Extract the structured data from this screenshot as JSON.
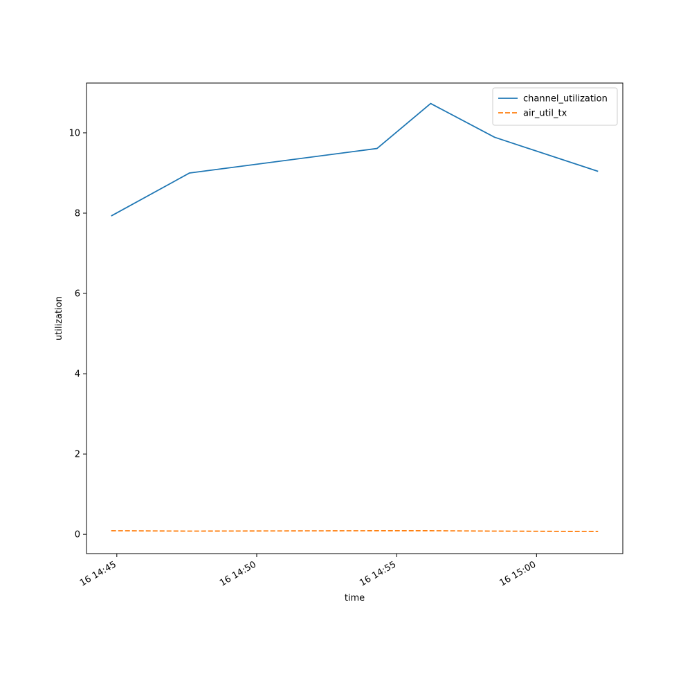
{
  "chart_data": {
    "type": "line",
    "xlabel": "time",
    "ylabel": "utilization",
    "x_axis_kind": "datetime",
    "xlim": [
      "16 14:43:55",
      "16 15:03:05"
    ],
    "ylim": [
      -0.48,
      11.24
    ],
    "x_ticks": [
      {
        "value": "16 14:45:00",
        "label": "16 14:45"
      },
      {
        "value": "16 14:50:00",
        "label": "16 14:50"
      },
      {
        "value": "16 14:55:00",
        "label": "16 14:55"
      },
      {
        "value": "16 15:00:00",
        "label": "16 15:00"
      }
    ],
    "y_ticks": [
      0,
      2,
      4,
      6,
      8,
      10
    ],
    "grid": false,
    "legend_position": "top-right",
    "series": [
      {
        "name": "channel_utilization",
        "color": "#1f77b4",
        "style": "solid",
        "points": [
          {
            "x": "16 14:44:48",
            "y": 7.93
          },
          {
            "x": "16 14:47:36",
            "y": 9.0
          },
          {
            "x": "16 14:54:18",
            "y": 9.61
          },
          {
            "x": "16 14:56:13",
            "y": 10.73
          },
          {
            "x": "16 14:58:30",
            "y": 9.89
          },
          {
            "x": "16 15:02:12",
            "y": 9.04
          }
        ]
      },
      {
        "name": "air_util_tx",
        "color": "#ff7f0e",
        "style": "dashed",
        "points": [
          {
            "x": "16 14:44:48",
            "y": 0.09
          },
          {
            "x": "16 14:47:36",
            "y": 0.08
          },
          {
            "x": "16 14:54:18",
            "y": 0.09
          },
          {
            "x": "16 14:56:13",
            "y": 0.09
          },
          {
            "x": "16 14:58:30",
            "y": 0.08
          },
          {
            "x": "16 15:02:12",
            "y": 0.07
          }
        ]
      }
    ]
  }
}
